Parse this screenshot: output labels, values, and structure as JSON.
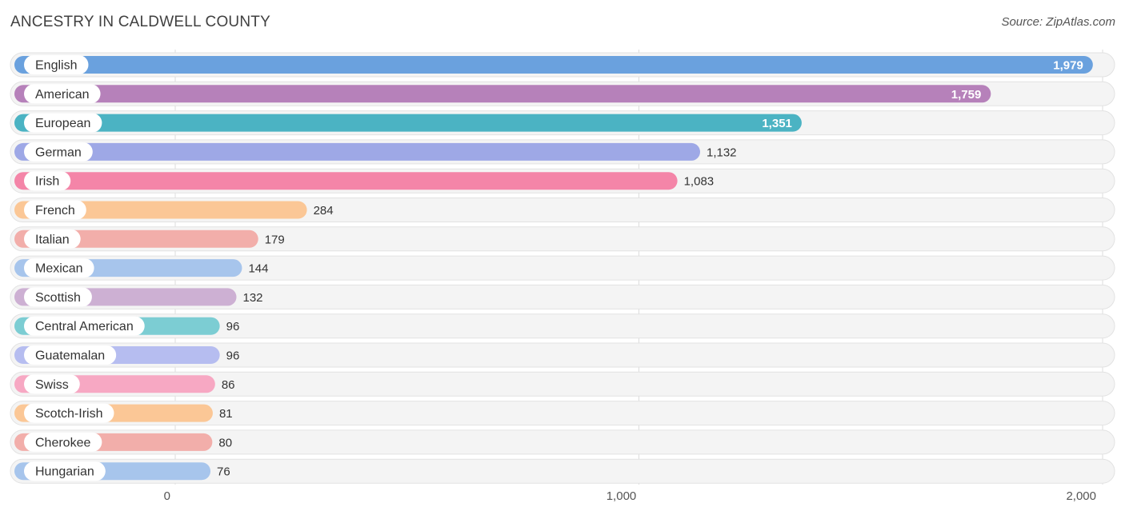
{
  "header": {
    "title": "ANCESTRY IN CALDWELL COUNTY",
    "source": "Source: ZipAtlas.com"
  },
  "chart_data": {
    "type": "bar",
    "orientation": "horizontal",
    "title": "ANCESTRY IN CALDWELL COUNTY",
    "xlim": [
      0,
      2000
    ],
    "x_ticks": [
      0,
      1000,
      2000
    ],
    "x_tick_labels": [
      "0",
      "1,000",
      "2,000"
    ],
    "grid": true,
    "categories": [
      "English",
      "American",
      "European",
      "German",
      "Irish",
      "French",
      "Italian",
      "Mexican",
      "Scottish",
      "Central American",
      "Guatemalan",
      "Swiss",
      "Scotch-Irish",
      "Cherokee",
      "Hungarian"
    ],
    "values": [
      1979,
      1759,
      1351,
      1132,
      1083,
      284,
      179,
      144,
      132,
      96,
      96,
      86,
      81,
      80,
      76
    ],
    "value_labels": [
      "1,979",
      "1,759",
      "1,351",
      "1,132",
      "1,083",
      "284",
      "179",
      "144",
      "132",
      "96",
      "96",
      "86",
      "81",
      "80",
      "76"
    ],
    "colors": [
      "#6aa1de",
      "#b681ba",
      "#4bb3c3",
      "#9ea8e6",
      "#f485a8",
      "#fbc796",
      "#f2aeaa",
      "#a7c5ec",
      "#cdb0d3",
      "#7ccdd3",
      "#b6bdf0",
      "#f7a8c3",
      "#fbc796",
      "#f2aeaa",
      "#a7c5ec"
    ]
  }
}
